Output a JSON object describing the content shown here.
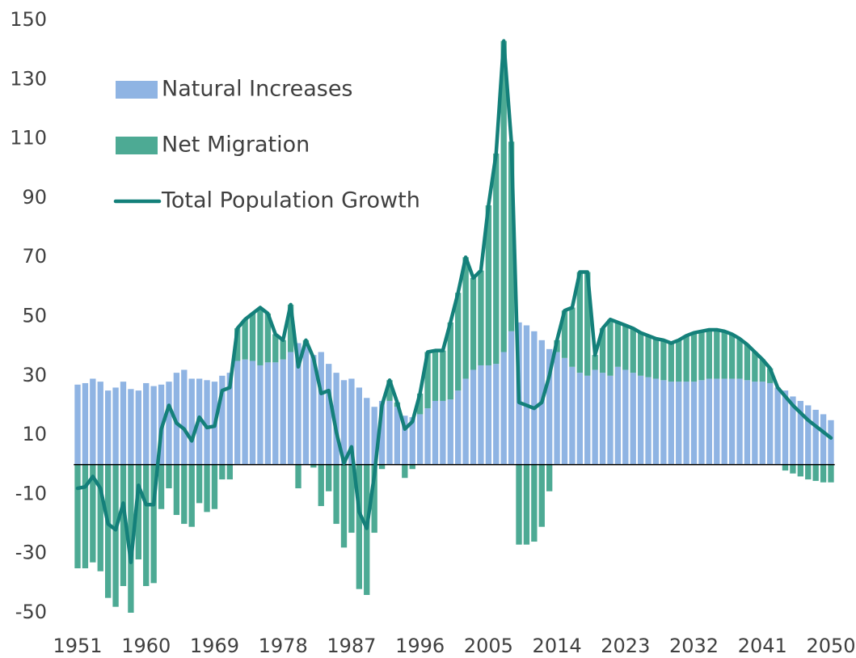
{
  "chart_data": {
    "type": "stacked-bar-line",
    "x": [
      1951,
      1952,
      1953,
      1954,
      1955,
      1956,
      1957,
      1958,
      1959,
      1960,
      1961,
      1962,
      1963,
      1964,
      1965,
      1966,
      1967,
      1968,
      1969,
      1970,
      1971,
      1972,
      1973,
      1974,
      1975,
      1976,
      1977,
      1978,
      1979,
      1980,
      1981,
      1982,
      1983,
      1984,
      1985,
      1986,
      1987,
      1988,
      1989,
      1990,
      1991,
      1992,
      1993,
      1994,
      1995,
      1996,
      1997,
      1998,
      1999,
      2000,
      2001,
      2002,
      2003,
      2004,
      2005,
      2006,
      2007,
      2008,
      2009,
      2010,
      2011,
      2012,
      2013,
      2014,
      2015,
      2016,
      2017,
      2018,
      2019,
      2020,
      2021,
      2022,
      2023,
      2024,
      2025,
      2026,
      2027,
      2028,
      2029,
      2030,
      2031,
      2032,
      2033,
      2034,
      2035,
      2036,
      2037,
      2038,
      2039,
      2040,
      2041,
      2042,
      2043,
      2044,
      2045,
      2046,
      2047,
      2048,
      2049,
      2050
    ],
    "series": [
      {
        "name": "Natural Increases",
        "kind": "bar",
        "color": "#8fb4e3",
        "values": [
          27,
          27.5,
          29,
          28,
          25,
          26,
          28,
          25.5,
          25,
          27.5,
          26.5,
          27,
          28,
          31,
          32,
          29,
          29,
          28.5,
          28,
          30,
          31,
          35,
          35.5,
          35,
          33.5,
          34.5,
          34.5,
          35.5,
          38,
          41,
          40,
          37,
          38,
          34,
          31,
          28.5,
          29,
          26,
          22.5,
          19.5,
          21.5,
          21.5,
          19.5,
          16.5,
          16,
          17,
          19,
          21.5,
          21.5,
          22,
          25,
          29,
          32,
          33.5,
          33.5,
          34,
          38,
          45,
          48,
          47,
          45,
          42,
          39,
          38,
          36,
          33,
          31,
          30,
          32,
          31,
          30,
          33,
          32,
          31,
          30,
          29.5,
          29,
          28.5,
          28,
          28,
          28,
          28,
          28.5,
          29,
          29,
          29,
          29,
          29,
          28.5,
          28,
          28,
          27.5,
          26,
          25,
          23,
          21.5,
          20,
          18.5,
          17,
          15
        ]
      },
      {
        "name": "Net Migration",
        "kind": "bar",
        "color": "#4daa94",
        "values": [
          -35,
          -35,
          -33,
          -36,
          -45,
          -48,
          -41,
          -50,
          -32,
          -41,
          -40,
          -15,
          -8,
          -17,
          -20,
          -21,
          -13,
          -16,
          -15,
          -5,
          -5,
          11,
          13.5,
          16,
          19.5,
          16.5,
          9.5,
          6.5,
          16,
          -8,
          2,
          -1,
          -14,
          -9,
          -20,
          -28,
          -23,
          -42,
          -44,
          -23,
          -1.5,
          7,
          1.5,
          -4.5,
          -1.5,
          7,
          19,
          17,
          17,
          26,
          33,
          41,
          31,
          32,
          54,
          71,
          105,
          64,
          -27,
          -27,
          -26,
          -21,
          -9,
          4,
          16,
          20,
          34,
          35,
          5,
          15,
          19,
          15,
          15,
          15,
          14.5,
          14,
          13.5,
          13.5,
          13,
          14,
          15.5,
          16.5,
          16.5,
          16.5,
          16.5,
          16,
          15,
          13.5,
          12,
          10,
          7.5,
          5,
          0,
          -2,
          -3,
          -4,
          -5,
          -5.5,
          -6,
          -6
        ]
      },
      {
        "name": "Total Population Growth",
        "kind": "line",
        "color": "#14807a",
        "values": [
          -8,
          -7.5,
          -4,
          -8,
          -20,
          -22,
          -13,
          -33,
          -7,
          -13.5,
          -13.5,
          12,
          20,
          14,
          12,
          8,
          16,
          12.5,
          13,
          25,
          26,
          46,
          49,
          51,
          53,
          51,
          44,
          42,
          54,
          33,
          42,
          36,
          24,
          25,
          11,
          0.5,
          6,
          -16,
          -21.5,
          -3.5,
          20,
          28.5,
          21,
          12,
          14.5,
          24,
          38,
          38.5,
          38.5,
          48,
          58,
          70,
          63,
          65.5,
          87.5,
          105,
          143,
          109,
          21,
          20,
          19,
          21,
          30,
          42,
          52,
          53,
          65,
          65,
          37,
          46,
          49,
          48,
          47,
          46,
          44.5,
          43.5,
          42.5,
          42,
          41,
          42,
          43.5,
          44.5,
          45,
          45.5,
          45.5,
          45,
          44,
          42.5,
          40.5,
          38,
          35.5,
          32.5,
          26,
          23,
          20,
          17.5,
          15,
          13,
          11,
          9
        ]
      }
    ],
    "xlim": [
      1950.5,
      2050.5
    ],
    "xticks": [
      1951,
      1960,
      1969,
      1978,
      1987,
      1996,
      2005,
      2014,
      2023,
      2032,
      2041,
      2050
    ],
    "ylim": [
      -50,
      150
    ],
    "yticks": [
      150,
      130,
      110,
      90,
      70,
      50,
      30,
      10,
      -10,
      -30,
      -50
    ],
    "legend": "upper-left",
    "grid": false
  }
}
